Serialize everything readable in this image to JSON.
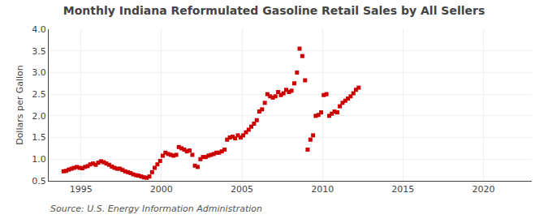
{
  "chart_data": {
    "type": "scatter",
    "title": "Monthly Indiana Reformulated Gasoline Retail Sales by All Sellers",
    "ylabel": "Dollars per Gallon",
    "annotations": [
      "Source: U.S. Energy Information Administration"
    ],
    "color": "#cc0000",
    "marker": "square",
    "grid": true,
    "xlim": [
      1993.0,
      2023.0
    ],
    "ylim": [
      0.5,
      4.0
    ],
    "xticks": [
      1995,
      2000,
      2005,
      2010,
      2015,
      2020
    ],
    "yticks": [
      0.5,
      {
        "value": 1.0,
        "label": "1.0"
      },
      1.5,
      {
        "value": 2.0,
        "label": "2.0"
      },
      2.5,
      {
        "value": 3.0,
        "label": "3.0"
      },
      3.5,
      {
        "value": 4.0,
        "label": "4.0"
      }
    ],
    "x": [
      1993.92,
      1994.08,
      1994.25,
      1994.42,
      1994.58,
      1994.75,
      1994.92,
      1995.08,
      1995.25,
      1995.42,
      1995.58,
      1995.75,
      1995.92,
      1996.08,
      1996.25,
      1996.42,
      1996.58,
      1996.75,
      1996.92,
      1997.08,
      1997.25,
      1997.42,
      1997.58,
      1997.75,
      1997.92,
      1998.08,
      1998.25,
      1998.42,
      1998.58,
      1998.75,
      1998.92,
      1999.08,
      1999.25,
      1999.42,
      1999.58,
      1999.75,
      1999.92,
      2000.08,
      2000.25,
      2000.42,
      2000.58,
      2000.75,
      2000.92,
      2001.08,
      2001.25,
      2001.42,
      2001.58,
      2001.75,
      2001.92,
      2002.08,
      2002.25,
      2002.42,
      2002.58,
      2002.75,
      2002.92,
      2003.08,
      2003.25,
      2003.42,
      2003.58,
      2003.75,
      2003.92,
      2004.08,
      2004.25,
      2004.42,
      2004.58,
      2004.75,
      2004.92,
      2005.08,
      2005.25,
      2005.42,
      2005.58,
      2005.75,
      2005.92,
      2006.08,
      2006.25,
      2006.42,
      2006.58,
      2006.75,
      2006.92,
      2007.08,
      2007.25,
      2007.42,
      2007.58,
      2007.75,
      2007.92,
      2008.08,
      2008.25,
      2008.42,
      2008.58,
      2008.75,
      2008.92,
      2009.08,
      2009.25,
      2009.42,
      2009.58,
      2009.75,
      2009.92,
      2010.08,
      2010.25,
      2010.42,
      2010.58,
      2010.75,
      2010.92,
      2011.08,
      2011.25,
      2011.42,
      2011.58,
      2011.75,
      2011.92,
      2012.08,
      2012.25
    ],
    "values": [
      0.72,
      0.73,
      0.76,
      0.78,
      0.8,
      0.82,
      0.8,
      0.79,
      0.82,
      0.84,
      0.88,
      0.9,
      0.87,
      0.92,
      0.95,
      0.93,
      0.9,
      0.87,
      0.83,
      0.8,
      0.78,
      0.78,
      0.75,
      0.72,
      0.7,
      0.68,
      0.65,
      0.63,
      0.62,
      0.6,
      0.58,
      0.57,
      0.6,
      0.7,
      0.8,
      0.88,
      0.96,
      1.08,
      1.15,
      1.12,
      1.1,
      1.08,
      1.1,
      1.28,
      1.25,
      1.22,
      1.18,
      1.2,
      1.1,
      0.85,
      0.82,
      1.0,
      1.05,
      1.05,
      1.08,
      1.1,
      1.12,
      1.15,
      1.15,
      1.18,
      1.22,
      1.45,
      1.5,
      1.52,
      1.48,
      1.55,
      1.5,
      1.55,
      1.62,
      1.68,
      1.75,
      1.82,
      1.9,
      2.1,
      2.15,
      2.3,
      2.5,
      2.45,
      2.42,
      2.45,
      2.55,
      2.48,
      2.52,
      2.6,
      2.55,
      2.58,
      2.75,
      3.0,
      3.55,
      3.38,
      2.82,
      1.22,
      1.45,
      1.55,
      2.0,
      2.02,
      2.08,
      2.48,
      2.5,
      2.0,
      2.05,
      2.1,
      2.08,
      2.22,
      2.3,
      2.35,
      2.4,
      2.45,
      2.52,
      2.6,
      2.65
    ]
  }
}
